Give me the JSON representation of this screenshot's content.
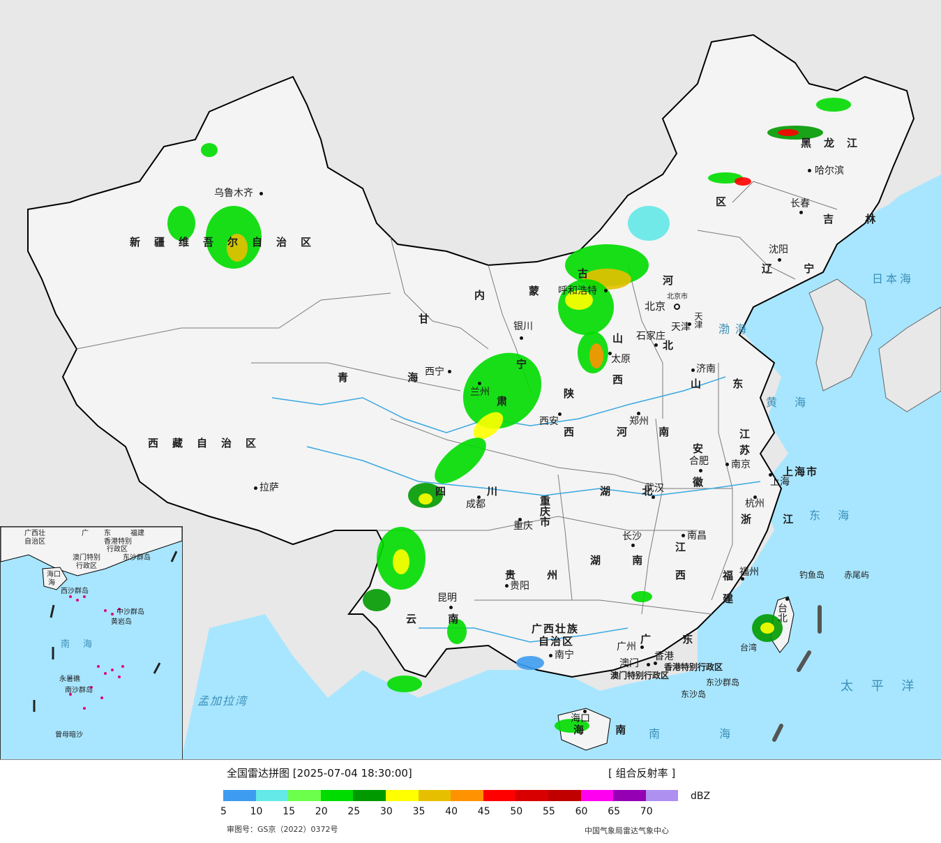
{
  "colors": {
    "ocean": "#a8e6ff",
    "land_china": "#f4f4f4",
    "land_other": "#e8e8e8",
    "border": "#000000",
    "river": "#38a8e0",
    "sea_label": "#3a8fb8",
    "inset_island": "#e0007a"
  },
  "map": {
    "provinces": [
      {
        "id": "xinjiang",
        "text": "新疆维吾尔自治区"
      },
      {
        "id": "xizang",
        "text": "西藏自治区"
      },
      {
        "id": "qinghai",
        "text": "青 海"
      },
      {
        "id": "gansu",
        "text": "甘"
      },
      {
        "id": "neimenggu1",
        "text": "内"
      },
      {
        "id": "neimenggu2",
        "text": "蒙"
      },
      {
        "id": "neimenggu3",
        "text": "古"
      },
      {
        "id": "heilongjiang",
        "text": "黑龙江"
      },
      {
        "id": "jilin",
        "text": "吉 林"
      },
      {
        "id": "liaoning",
        "text": "辽 宁"
      },
      {
        "id": "hebei1",
        "text": "河"
      },
      {
        "id": "hebei2",
        "text": "北"
      },
      {
        "id": "shanxi1",
        "text": "山"
      },
      {
        "id": "shanxi2",
        "text": "西"
      },
      {
        "id": "shandong",
        "text": "山 东"
      },
      {
        "id": "henan",
        "text": "河 南"
      },
      {
        "id": "shaanxi1",
        "text": "陕"
      },
      {
        "id": "shaanxi2",
        "text": "西"
      },
      {
        "id": "ningxia",
        "text": "宁"
      },
      {
        "id": "jiangsu1",
        "text": "江"
      },
      {
        "id": "jiangsu2",
        "text": "苏"
      },
      {
        "id": "anhui1",
        "text": "安"
      },
      {
        "id": "anhui2",
        "text": "徽"
      },
      {
        "id": "hubei",
        "text": "湖 北"
      },
      {
        "id": "sichuan1",
        "text": "四"
      },
      {
        "id": "sichuan2",
        "text": "川"
      },
      {
        "id": "chongqing",
        "text": "重庆市"
      },
      {
        "id": "zhejiang",
        "text": "浙 江"
      },
      {
        "id": "jiangxi1",
        "text": "江"
      },
      {
        "id": "jiangxi2",
        "text": "西"
      },
      {
        "id": "hunan",
        "text": "湖 南"
      },
      {
        "id": "guizhou",
        "text": "贵 州"
      },
      {
        "id": "yunnan",
        "text": "云 南"
      },
      {
        "id": "fujian1",
        "text": "福"
      },
      {
        "id": "fujian2",
        "text": "建"
      },
      {
        "id": "guangxi1",
        "text": "广西壮族"
      },
      {
        "id": "guangxi2",
        "text": "自治区"
      },
      {
        "id": "guangdong",
        "text": "广 东"
      },
      {
        "id": "hainan",
        "text": "海 南"
      },
      {
        "id": "taiwan",
        "text": "台湾"
      },
      {
        "id": "shanghai",
        "text": "上海市"
      },
      {
        "id": "hongkong",
        "text": "香港特别行政区"
      },
      {
        "id": "macau",
        "text": "澳门特别行政区"
      },
      {
        "id": "tianjin",
        "text": "天津"
      },
      {
        "id": "beijing_city",
        "text": "北京市"
      },
      {
        "id": "gansu2",
        "text": "肃"
      },
      {
        "id": "qu",
        "text": "区"
      },
      {
        "id": "huinan",
        "text": "湖南"
      }
    ],
    "cities": [
      {
        "id": "urumqi",
        "text": "乌鲁木齐"
      },
      {
        "id": "lhasa",
        "text": "拉萨"
      },
      {
        "id": "xining",
        "text": "西宁"
      },
      {
        "id": "lanzhou",
        "text": "兰州"
      },
      {
        "id": "yinchuan",
        "text": "银川"
      },
      {
        "id": "hohhot",
        "text": "呼和浩特"
      },
      {
        "id": "harbin",
        "text": "哈尔滨"
      },
      {
        "id": "changchun",
        "text": "长春"
      },
      {
        "id": "shenyang",
        "text": "沈阳"
      },
      {
        "id": "beijing",
        "text": "北京"
      },
      {
        "id": "tianjin_c",
        "text": "天津"
      },
      {
        "id": "shijiazhuang",
        "text": "石家庄"
      },
      {
        "id": "taiyuan",
        "text": "太原"
      },
      {
        "id": "jinan",
        "text": "济南"
      },
      {
        "id": "zhengzhou",
        "text": "郑州"
      },
      {
        "id": "xian",
        "text": "西安"
      },
      {
        "id": "hefei",
        "text": "合肥"
      },
      {
        "id": "nanjing",
        "text": "南京"
      },
      {
        "id": "shanghai_c",
        "text": "上海"
      },
      {
        "id": "hangzhou",
        "text": "杭州"
      },
      {
        "id": "wuhan",
        "text": "武汉"
      },
      {
        "id": "chengdu",
        "text": "成都"
      },
      {
        "id": "chongqing_c",
        "text": "重庆"
      },
      {
        "id": "changsha",
        "text": "长沙"
      },
      {
        "id": "nanchang",
        "text": "南昌"
      },
      {
        "id": "fuzhou",
        "text": "福州"
      },
      {
        "id": "guiyang",
        "text": "贵阳"
      },
      {
        "id": "kunming",
        "text": "昆明"
      },
      {
        "id": "nanning",
        "text": "南宁"
      },
      {
        "id": "guangzhou",
        "text": "广州"
      },
      {
        "id": "aomen",
        "text": "澳门"
      },
      {
        "id": "xianggang",
        "text": "香港"
      },
      {
        "id": "haikou",
        "text": "海口"
      },
      {
        "id": "taibei",
        "text": "台北"
      }
    ],
    "seas": [
      {
        "id": "japan_sea",
        "text": "日本海"
      },
      {
        "id": "bohai",
        "text": "渤海"
      },
      {
        "id": "yellow_sea",
        "text": "黄 海"
      },
      {
        "id": "east_sea",
        "text": "东 海"
      },
      {
        "id": "pacific",
        "text": "太 平 洋"
      },
      {
        "id": "south_sea",
        "text": "南 海"
      },
      {
        "id": "bengal",
        "text": "孟加拉湾"
      }
    ],
    "islands": [
      {
        "id": "diaoyu",
        "text": "钓鱼岛"
      },
      {
        "id": "chiwei",
        "text": "赤尾屿"
      },
      {
        "id": "dongsha_qd",
        "text": "东沙群岛"
      },
      {
        "id": "dongsha_d",
        "text": "东沙岛"
      }
    ]
  },
  "inset": {
    "labels": [
      {
        "id": "i_guangxi",
        "text": "广西壮"
      },
      {
        "id": "i_zizhi",
        "text": "自治区"
      },
      {
        "id": "i_guangdong",
        "text": "广"
      },
      {
        "id": "i_dong",
        "text": "东"
      },
      {
        "id": "i_fujian",
        "text": "福建"
      },
      {
        "id": "i_hk",
        "text": "香港特别"
      },
      {
        "id": "i_hk2",
        "text": "行政区"
      },
      {
        "id": "i_macau",
        "text": "澳门特别"
      },
      {
        "id": "i_macau2",
        "text": "行政区"
      },
      {
        "id": "i_dongsha",
        "text": "东沙群岛"
      },
      {
        "id": "i_haikou",
        "text": "海口"
      },
      {
        "id": "i_hainan",
        "text": "海"
      },
      {
        "id": "i_xisha",
        "text": "西沙群岛"
      },
      {
        "id": "i_zhongsha",
        "text": "中沙群岛"
      },
      {
        "id": "i_huangyan",
        "text": "黄岩岛"
      },
      {
        "id": "i_nanhai",
        "text": "南"
      },
      {
        "id": "i_hai",
        "text": "海"
      },
      {
        "id": "i_yongshu",
        "text": "永暑礁"
      },
      {
        "id": "i_nansha",
        "text": "南沙群岛"
      },
      {
        "id": "i_zengmu",
        "text": "曾母暗沙"
      }
    ]
  },
  "legend": {
    "title": "全国雷达拼图 [2025-07-04 18:30:00]",
    "product": "[ 组合反射率 ]",
    "unit": "dBZ",
    "colors": [
      "#3e9cf0",
      "#64e8e8",
      "#6cff4c",
      "#00dc00",
      "#009a00",
      "#ffff00",
      "#e6c000",
      "#ff9200",
      "#ff0000",
      "#d80000",
      "#c00000",
      "#ff00f0",
      "#9600b4",
      "#ae90f0"
    ],
    "ticks": [
      "5",
      "10",
      "15",
      "20",
      "25",
      "30",
      "35",
      "40",
      "45",
      "50",
      "55",
      "60",
      "65",
      "70"
    ],
    "approval": "审图号：GS京（2022）0372号",
    "org": "中国气象局雷达气象中心"
  }
}
